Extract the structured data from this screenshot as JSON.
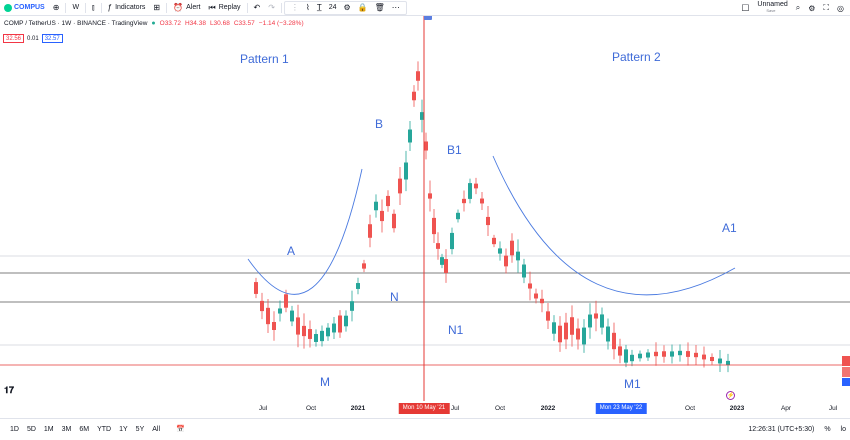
{
  "toolbar": {
    "symbol": "COMPUS",
    "interval": "W",
    "indicators_label": "Indicators",
    "alert_label": "Alert",
    "replay_label": "Replay",
    "text_size": "24",
    "layout_name": "Unnamed",
    "layout_status": "Save"
  },
  "legend": {
    "title": "COMP / TetherUS · 1W · BINANCE · TradingView",
    "open": "O33.72",
    "high": "H34.38",
    "low": "L30.68",
    "close": "C33.57",
    "change": "−1.14 (−3.28%)",
    "sell_price": "32.56",
    "spread": "0.01",
    "buy_price": "32.57"
  },
  "annotations": {
    "pattern1": "Pattern 1",
    "pattern2": "Pattern 2",
    "a": "A",
    "b": "B",
    "n": "N",
    "m": "M",
    "b1": "B1",
    "n1": "N1",
    "m1": "M1",
    "a1": "A1"
  },
  "time_axis": {
    "ticks": [
      "Jul",
      "Oct",
      "2021",
      "Jul",
      "Oct",
      "2022",
      "Oct",
      "2023",
      "Apr",
      "Jul"
    ],
    "crosshair_1": "Mon 10 May '21",
    "crosshair_2": "Mon 23 May '22"
  },
  "bottom_bar": {
    "ranges": [
      "1D",
      "5D",
      "1M",
      "3M",
      "6M",
      "YTD",
      "1Y",
      "5Y",
      "All"
    ],
    "clock": "12:26:31 (UTC+5:30)",
    "percent": "%",
    "log": "lo"
  },
  "colors": {
    "up": "#26a69a",
    "down": "#ef5350",
    "annotation": "#3f6bd8",
    "crosshair": "#e53935",
    "curve": "#4a7ae0"
  }
}
